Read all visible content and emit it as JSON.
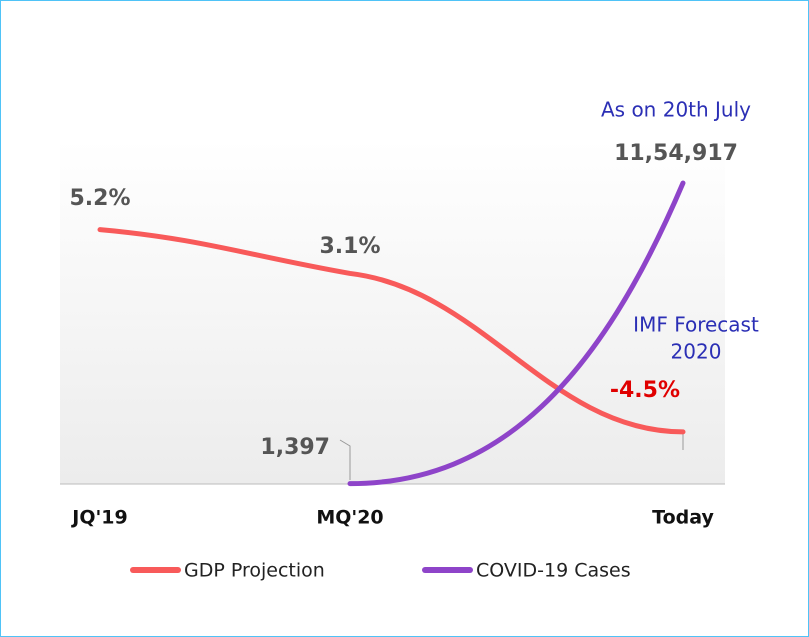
{
  "chart_data": {
    "type": "line",
    "categories": [
      "JQ'19",
      "MQ'20",
      "Today"
    ],
    "series": [
      {
        "name": "GDP Projection",
        "color": "#f85a5a",
        "values": [
          5.2,
          3.1,
          -4.5
        ],
        "value_labels": [
          "5.2%",
          "3.1%",
          "-4.5%"
        ]
      },
      {
        "name": "COVID-19 Cases",
        "color": "#8e44c9",
        "axis": "y2",
        "values": [
          null,
          1397,
          1154917
        ],
        "value_labels": [
          null,
          "1,397",
          "11,54,917"
        ]
      }
    ],
    "ylim": [
      -7,
      9.5
    ],
    "y2lim": [
      0,
      1320000
    ],
    "annotations": [
      "As on 20th July",
      [
        "IMF Forecast",
        "2020"
      ]
    ]
  }
}
